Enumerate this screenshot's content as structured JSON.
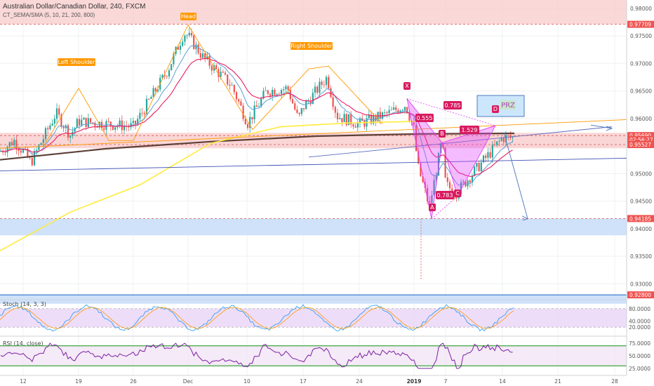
{
  "header": {
    "symbol_line": "Australian Dollar/Canadian Dollar, 240, FXCM",
    "indicator_line": "CT_SEMA/SMA (5, 10, 21, 200, 800)"
  },
  "colors": {
    "bull": "#26a69a",
    "bear": "#ef5350",
    "ema_fast": "#e91e63",
    "ema_mid": "#5c9fd6",
    "sma200": "#5d4037",
    "sma800": "#ffeb3b",
    "pattern_orange": "#ff9800",
    "harmonic": "#e040fb",
    "trend_blue": "#3f51b5",
    "zone_red": "#f8c8c8",
    "zone_blue": "#cfe2fa",
    "stoch_bg": "#ead5f7",
    "rsi_line": "#7b1fa2",
    "rsi_band": "#4caf50"
  },
  "price_axis": {
    "ticks": [
      "0.98000",
      "0.97500",
      "0.97000",
      "0.96500",
      "0.96000",
      "0.95500",
      "0.95000",
      "0.94500",
      "0.94000",
      "0.93500",
      "0.93000"
    ],
    "tags": [
      {
        "text": "0.97709",
        "color": "#ef5350",
        "price": 0.97709
      },
      {
        "text": "0.95690",
        "color": "#ef5350",
        "price": 0.9569
      },
      {
        "text": "02:56:27",
        "color": "#ef5350",
        "price": 0.95615
      },
      {
        "text": "0.95527",
        "color": "#ef5350",
        "price": 0.95527
      },
      {
        "text": "0.94185",
        "color": "#ef5350",
        "price": 0.94185
      },
      {
        "text": "0.92800",
        "color": "#ef5350",
        "price": 0.928
      }
    ]
  },
  "pattern_labels": {
    "head": "Head",
    "left_shoulder": "Left Shoulder",
    "right_shoulder": "Right Shoulder",
    "prz": "PRZ",
    "x": "X",
    "a": "A",
    "b": "B",
    "c": "C",
    "d": "D",
    "r1": "0.555",
    "r2": "0.785",
    "r3": "1.529",
    "r4": "0.783"
  },
  "time_axis": {
    "labels": [
      "12",
      "19",
      "26",
      "Dec",
      "10",
      "17",
      "24",
      "2019",
      "7",
      "14",
      "21",
      "28"
    ]
  },
  "stoch": {
    "title": "Stoch (14, 3, 3)",
    "ticks": [
      "80.0000",
      "40.0000",
      "20.0000"
    ]
  },
  "rsi": {
    "title": "RSI (14, close)",
    "ticks": [
      "75.0000",
      "50.0000",
      "25.0000"
    ]
  },
  "chart_data": {
    "type": "candlestick",
    "symbol": "Australian Dollar/Canadian Dollar",
    "interval": "240",
    "source": "FXCM",
    "y_range": [
      0.927,
      0.9815
    ],
    "x_labels": [
      "12",
      "19",
      "26",
      "Dec",
      "10",
      "17",
      "24",
      "2019",
      "7",
      "14",
      "21",
      "28"
    ],
    "close_path": [
      {
        "label": "12",
        "close": 0.954
      },
      {
        "label": "19",
        "close": 0.9595
      },
      {
        "label": "26",
        "close": 0.9585
      },
      {
        "label": "Dec",
        "close": 0.975
      },
      {
        "label": "10",
        "close": 0.959
      },
      {
        "label": "17",
        "close": 0.962
      },
      {
        "label": "24",
        "close": 0.959
      },
      {
        "label": "2019",
        "close": 0.958
      },
      {
        "label": "7",
        "close": 0.948
      },
      {
        "label": "14",
        "close": 0.9565
      }
    ],
    "levels": [
      0.97709,
      0.9569,
      0.95527,
      0.94185,
      0.928
    ],
    "harmonic_points": [
      {
        "name": "X",
        "price": 0.9636
      },
      {
        "name": "A",
        "price": 0.9418
      },
      {
        "name": "B",
        "price": 0.9556
      },
      {
        "name": "C",
        "price": 0.9459
      },
      {
        "name": "D",
        "price": 0.9587
      }
    ],
    "harmonic_ratios": [
      "0.555",
      "0.785",
      "1.529",
      "0.783"
    ],
    "annotations": [
      "Head",
      "Left Shoulder",
      "Right Shoulder",
      "PRZ"
    ],
    "grid": true
  }
}
